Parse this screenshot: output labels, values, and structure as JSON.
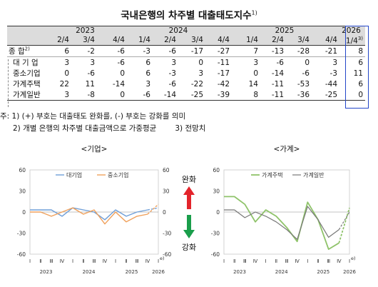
{
  "title": "국내은행의 차주별 대출태도지수",
  "title_sup": "1)",
  "table": {
    "years": [
      {
        "label": "2023",
        "span": 3
      },
      {
        "label": "2024",
        "span": 4
      },
      {
        "label": "2025",
        "span": 4
      },
      {
        "label": "2026",
        "span": 1
      }
    ],
    "quarters": [
      "2/4",
      "3/4",
      "4/4",
      "1/4",
      "2/4",
      "3/4",
      "4/4",
      "1/4",
      "2/4",
      "3/4",
      "4/4",
      "1/4"
    ],
    "last_quarter_sup": "3)",
    "rows": [
      {
        "label": "종    합",
        "sup": "2)",
        "values": [
          "6",
          "-2",
          "-6",
          "-3",
          "-6",
          "-17",
          "-27",
          "7",
          "-13",
          "-28",
          "-21",
          "8"
        ]
      },
      {
        "label": "대 기 업",
        "values": [
          "3",
          "3",
          "-6",
          "6",
          "3",
          "0",
          "-11",
          "3",
          "-6",
          "0",
          "3",
          "6"
        ]
      },
      {
        "label": "중소기업",
        "values": [
          "0",
          "-6",
          "0",
          "6",
          "-3",
          "3",
          "-17",
          "0",
          "-14",
          "-6",
          "-3",
          "11"
        ]
      },
      {
        "label": "가계주택",
        "values": [
          "22",
          "11",
          "-14",
          "3",
          "-6",
          "-22",
          "-42",
          "14",
          "-11",
          "-53",
          "-44",
          "6"
        ]
      },
      {
        "label": "가계일반",
        "values": [
          "3",
          "-8",
          "0",
          "-6",
          "-14",
          "-25",
          "-39",
          "8",
          "-11",
          "-36",
          "-25",
          "0"
        ]
      }
    ]
  },
  "notes": [
    "주: 1) (+) 부호는 대출태도 완화를, (-) 부호는 강화를 의미",
    "2) 개별 은행의 차주별 대출금액으로 가중평균",
    "3) 전망치"
  ],
  "arrow_labels": {
    "up": "완화",
    "down": "강화"
  },
  "colors": {
    "blue_line": "#6f9fd8",
    "orange_line": "#f0a15c",
    "light_green": "#8fc36a",
    "dark_gray": "#777777",
    "highlight_box": "#2346c8",
    "arrow_red": "#e3242b",
    "arrow_green": "#1a9e4b"
  },
  "chart_data": [
    {
      "type": "line",
      "title": "<기업>",
      "x_tick_labels": [
        "Ⅰ",
        "Ⅱ",
        "Ⅲ",
        "Ⅳ",
        "Ⅰ",
        "Ⅱ",
        "Ⅲ",
        "Ⅳ",
        "Ⅰ",
        "Ⅱ",
        "Ⅲ",
        "Ⅳ",
        "Ⅰ"
      ],
      "x_group_labels": [
        "2023",
        "2024",
        "2025",
        "2026"
      ],
      "x_end_label": "e)",
      "ylim": [
        -60,
        60
      ],
      "y_ticks": [
        -60,
        -30,
        0,
        30,
        60
      ],
      "y_tick_labels_left": [
        "-60",
        "-30",
        "0",
        "30",
        "60"
      ],
      "y_tick_labels_right": [
        "-60",
        "-30",
        "0",
        "30",
        "60"
      ],
      "forecast_last_point": true,
      "series": [
        {
          "name": "대기업",
          "values": [
            3,
            3,
            3,
            -6,
            6,
            3,
            0,
            -11,
            3,
            -6,
            0,
            3,
            6
          ]
        },
        {
          "name": "중소기업",
          "values": [
            0,
            0,
            -6,
            0,
            6,
            -3,
            3,
            -17,
            0,
            -14,
            -6,
            -3,
            11
          ]
        }
      ]
    },
    {
      "type": "line",
      "title": "<가계>",
      "x_tick_labels": [
        "Ⅰ",
        "Ⅱ",
        "Ⅲ",
        "Ⅳ",
        "Ⅰ",
        "Ⅱ",
        "Ⅲ",
        "Ⅳ",
        "Ⅰ",
        "Ⅱ",
        "Ⅲ",
        "Ⅳ",
        "Ⅰ"
      ],
      "x_group_labels": [
        "2023",
        "2024",
        "2025",
        "2026"
      ],
      "x_end_label": "e)",
      "ylim": [
        -60,
        60
      ],
      "y_ticks": [
        -60,
        -30,
        0,
        30,
        60
      ],
      "y_tick_labels_left": [
        "-60",
        "-30",
        "0",
        "30",
        "60"
      ],
      "forecast_last_point": true,
      "series": [
        {
          "name": "가계주택",
          "values": [
            22,
            22,
            11,
            -14,
            3,
            -6,
            -22,
            -42,
            14,
            -11,
            -53,
            -44,
            6
          ]
        },
        {
          "name": "가계일반",
          "values": [
            3,
            3,
            -8,
            0,
            -6,
            -14,
            -25,
            -39,
            8,
            -11,
            -36,
            -25,
            0
          ]
        }
      ]
    }
  ]
}
